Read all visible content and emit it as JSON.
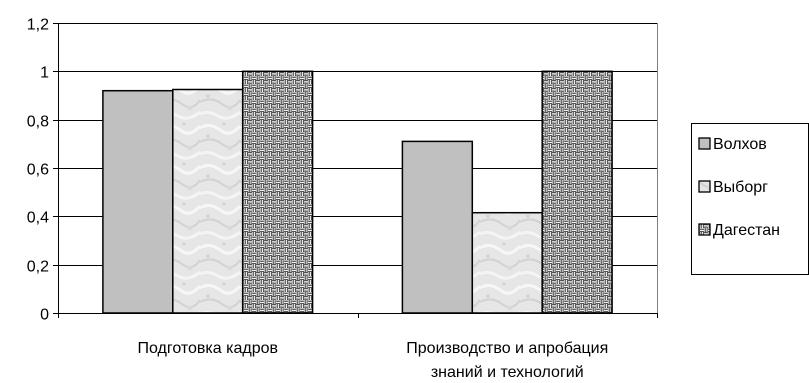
{
  "chart_data": {
    "type": "bar",
    "title": "",
    "xlabel": "",
    "ylabel": "",
    "categories": [
      [
        "Подготовка кадров"
      ],
      [
        "Производство и апробация",
        "знаний и технологий"
      ]
    ],
    "series": [
      {
        "name": "Волхов",
        "values": [
          0.92,
          0.71
        ],
        "color": "#c0c0c0",
        "pattern": "solid"
      },
      {
        "name": "Выборг",
        "values": [
          0.925,
          0.415
        ],
        "color": "#e4e4e4",
        "pattern": "marble"
      },
      {
        "name": "Дагестан",
        "values": [
          1.0,
          1.0
        ],
        "color": "#9a9a9a",
        "pattern": "weave"
      }
    ],
    "ylim": [
      0,
      1.2
    ],
    "yticks": [
      0,
      0.2,
      0.4,
      0.6,
      0.8,
      1,
      1.2
    ],
    "ytick_labels": [
      "0",
      "0,2",
      "0,4",
      "0,6",
      "0,8",
      "1",
      "1,2"
    ],
    "grid": true,
    "legend_position": "right"
  }
}
